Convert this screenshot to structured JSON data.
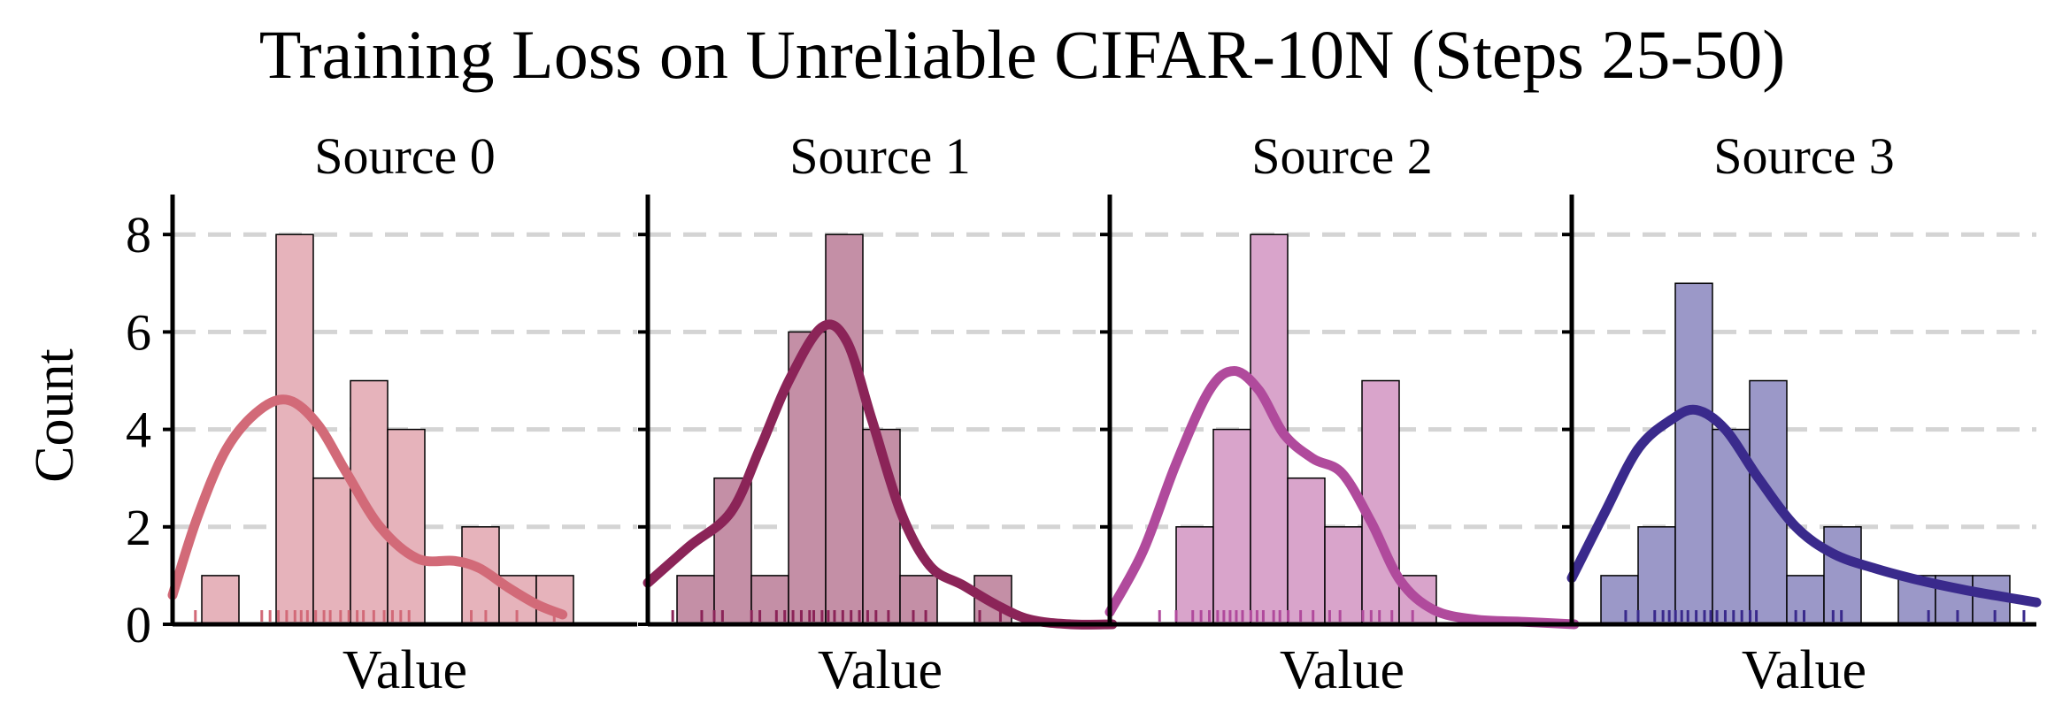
{
  "figure": {
    "title": "Training Loss on Unreliable CIFAR-10N (Steps 25-50)",
    "ylabel": "Count"
  },
  "chart_data": [
    {
      "type": "bar",
      "title": "Source 0",
      "xlabel": "Value",
      "ylabel": "Count",
      "ylim": [
        0,
        8.8
      ],
      "yticks": [
        0,
        2,
        4,
        6,
        8
      ],
      "grid": "horizontal dashed",
      "bin_count": 11,
      "counts": [
        1,
        0,
        8,
        3,
        5,
        4,
        0,
        2,
        1,
        1,
        0
      ],
      "kde": [
        [
          0,
          0.6
        ],
        [
          0.6,
          2.2
        ],
        [
          1.3,
          3.6
        ],
        [
          2.1,
          4.4
        ],
        [
          2.8,
          4.6
        ],
        [
          3.5,
          4.1
        ],
        [
          4.2,
          3.1
        ],
        [
          5.0,
          2.0
        ],
        [
          5.9,
          1.35
        ],
        [
          6.8,
          1.3
        ],
        [
          7.4,
          1.15
        ],
        [
          8.1,
          0.75
        ],
        [
          8.8,
          0.4
        ],
        [
          9.4,
          0.2
        ]
      ],
      "rug": [
        0.55,
        2.15,
        2.35,
        2.55,
        2.75,
        2.95,
        3.1,
        3.25,
        3.45,
        3.65,
        3.8,
        4.05,
        4.25,
        4.45,
        4.6,
        4.85,
        5.1,
        5.3,
        5.5,
        5.7,
        7.2,
        7.55,
        8.3,
        9.2
      ],
      "color": "#d26a78",
      "bar_color": "#e6b3bb"
    },
    {
      "type": "bar",
      "title": "Source 1",
      "xlabel": "Value",
      "ylabel": "Count",
      "ylim": [
        0,
        8.8
      ],
      "yticks": [
        0,
        2,
        4,
        6,
        8
      ],
      "grid": "horizontal dashed",
      "bin_count": 11,
      "counts": [
        1,
        3,
        1,
        6,
        8,
        4,
        1,
        0,
        1,
        0,
        0
      ],
      "kde": [
        [
          0,
          0.85
        ],
        [
          1.0,
          1.6
        ],
        [
          2.0,
          2.3
        ],
        [
          2.7,
          3.6
        ],
        [
          3.4,
          5.0
        ],
        [
          4.2,
          6.1
        ],
        [
          4.8,
          5.8
        ],
        [
          5.4,
          4.2
        ],
        [
          6.1,
          2.3
        ],
        [
          6.8,
          1.2
        ],
        [
          7.6,
          0.8
        ],
        [
          8.4,
          0.4
        ],
        [
          9.2,
          0.1
        ],
        [
          10.2,
          0.0
        ],
        [
          11.2,
          0.0
        ]
      ],
      "rug": [
        0.6,
        1.3,
        1.6,
        1.8,
        2.5,
        2.7,
        3.1,
        3.3,
        3.5,
        3.7,
        3.9,
        4.0,
        4.2,
        4.35,
        4.5,
        4.7,
        4.9,
        5.1,
        5.3,
        5.5,
        5.8,
        6.4,
        6.7,
        8.0,
        8.5
      ],
      "color": "#8b2458",
      "bar_color": "#c48fa6"
    },
    {
      "type": "bar",
      "title": "Source 2",
      "xlabel": "Value",
      "ylabel": "Count",
      "ylim": [
        0,
        8.8
      ],
      "yticks": [
        0,
        2,
        4,
        6,
        8
      ],
      "grid": "horizontal dashed",
      "bin_count": 11,
      "counts": [
        0,
        2,
        4,
        8,
        3,
        2,
        5,
        1,
        0,
        0,
        0
      ],
      "kde": [
        [
          0,
          0.25
        ],
        [
          0.8,
          1.5
        ],
        [
          1.6,
          3.3
        ],
        [
          2.4,
          4.8
        ],
        [
          3.0,
          5.2
        ],
        [
          3.6,
          4.8
        ],
        [
          4.2,
          3.9
        ],
        [
          4.9,
          3.4
        ],
        [
          5.6,
          3.1
        ],
        [
          6.3,
          2.1
        ],
        [
          7.0,
          0.9
        ],
        [
          7.8,
          0.3
        ],
        [
          8.8,
          0.1
        ],
        [
          10.0,
          0.05
        ],
        [
          11.2,
          0.0
        ]
      ],
      "rug": [
        1.2,
        1.6,
        2.0,
        2.2,
        2.4,
        2.6,
        2.75,
        2.9,
        3.05,
        3.2,
        3.4,
        3.55,
        3.7,
        3.95,
        4.1,
        4.3,
        4.6,
        4.9,
        5.3,
        5.55,
        6.1,
        6.3,
        6.5,
        6.8,
        7.3
      ],
      "color": "#b04a9c",
      "bar_color": "#d9a4cb"
    },
    {
      "type": "bar",
      "title": "Source 3",
      "xlabel": "Value",
      "ylabel": "Count",
      "ylim": [
        0,
        8.8
      ],
      "yticks": [
        0,
        2,
        4,
        6,
        8
      ],
      "grid": "horizontal dashed",
      "bin_count": 11,
      "counts": [
        1,
        2,
        7,
        4,
        5,
        1,
        2,
        0,
        1,
        1,
        1
      ],
      "kde": [
        [
          0,
          0.95
        ],
        [
          0.8,
          2.3
        ],
        [
          1.6,
          3.6
        ],
        [
          2.4,
          4.2
        ],
        [
          3.0,
          4.4
        ],
        [
          3.7,
          4.0
        ],
        [
          4.5,
          3.0
        ],
        [
          5.4,
          2.0
        ],
        [
          6.3,
          1.45
        ],
        [
          7.3,
          1.15
        ],
        [
          8.4,
          0.9
        ],
        [
          9.5,
          0.7
        ],
        [
          10.5,
          0.55
        ],
        [
          11.2,
          0.45
        ]
      ],
      "rug": [
        1.3,
        1.6,
        2.0,
        2.2,
        2.35,
        2.5,
        2.65,
        2.8,
        3.0,
        3.2,
        3.35,
        3.5,
        3.7,
        3.9,
        4.1,
        4.3,
        4.45,
        5.4,
        5.6,
        6.3,
        6.5,
        8.6,
        9.3,
        10.2,
        10.9
      ],
      "color": "#3a2a8c",
      "bar_color": "#9b98c8"
    }
  ]
}
